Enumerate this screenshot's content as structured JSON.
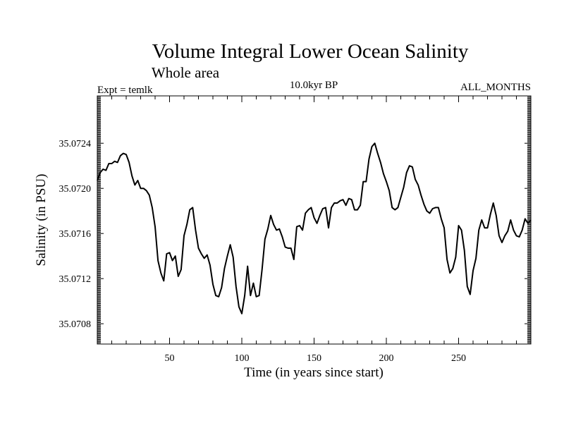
{
  "chart_data": {
    "type": "line",
    "title": "Volume Integral Lower Ocean Salinity",
    "subtitle": "Whole area",
    "left_label": "Expt = temlk",
    "center_label": "10.0kyr BP",
    "right_label": "ALL_MONTHS",
    "xlabel": "Time (in years since start)",
    "ylabel": "Salinity (in PSU)",
    "xlim": [
      0,
      300
    ],
    "ylim": [
      35.07062,
      35.07282
    ],
    "xticks": [
      50,
      100,
      150,
      200,
      250
    ],
    "xtick_labels": [
      "50",
      "100",
      "150",
      "200",
      "250"
    ],
    "yticks": [
      35.0708,
      35.0712,
      35.0716,
      35.072,
      35.0724
    ],
    "ytick_labels": [
      "35.0708",
      "35.0712",
      "35.0716",
      "35.0720",
      "35.0724"
    ],
    "line_color": "#000000",
    "series": [
      {
        "name": "Salinity",
        "x": [
          0,
          2,
          4,
          6,
          8,
          10,
          12,
          14,
          16,
          18,
          20,
          22,
          24,
          26,
          28,
          30,
          32,
          34,
          36,
          38,
          40,
          42,
          44,
          46,
          48,
          50,
          52,
          54,
          56,
          58,
          60,
          62,
          64,
          66,
          68,
          70,
          72,
          74,
          76,
          78,
          80,
          82,
          84,
          86,
          88,
          90,
          92,
          94,
          96,
          98,
          100,
          102,
          104,
          106,
          108,
          110,
          112,
          114,
          116,
          118,
          120,
          122,
          124,
          126,
          128,
          130,
          132,
          134,
          136,
          138,
          140,
          142,
          144,
          146,
          148,
          150,
          152,
          154,
          156,
          158,
          160,
          162,
          164,
          166,
          168,
          170,
          172,
          174,
          176,
          178,
          180,
          182,
          184,
          186,
          188,
          190,
          192,
          194,
          196,
          198,
          200,
          202,
          204,
          206,
          208,
          210,
          212,
          214,
          216,
          218,
          220,
          222,
          224,
          226,
          228,
          230,
          232,
          234,
          236,
          238,
          240,
          242,
          244,
          246,
          248,
          250,
          252,
          254,
          256,
          258,
          260,
          262,
          264,
          266,
          268,
          270,
          272,
          274,
          276,
          278,
          280,
          282,
          284,
          286,
          288,
          290,
          292,
          294,
          296,
          298,
          300
        ],
        "values": [
          35.07207,
          35.07214,
          35.07217,
          35.07216,
          35.07222,
          35.07222,
          35.07224,
          35.07223,
          35.07229,
          35.07231,
          35.0723,
          35.07223,
          35.07211,
          35.07203,
          35.07207,
          35.072,
          35.072,
          35.07198,
          35.07194,
          35.07183,
          35.07166,
          35.07136,
          35.07125,
          35.07118,
          35.07142,
          35.07143,
          35.07136,
          35.0714,
          35.07122,
          35.07128,
          35.07158,
          35.07168,
          35.07181,
          35.07183,
          35.07163,
          35.07147,
          35.07142,
          35.07138,
          35.07141,
          35.07132,
          35.07115,
          35.07105,
          35.07104,
          35.07112,
          35.07129,
          35.0714,
          35.0715,
          35.07139,
          35.07113,
          35.07095,
          35.07089,
          35.07105,
          35.07131,
          35.07105,
          35.07116,
          35.07104,
          35.07105,
          35.07128,
          35.07155,
          35.07164,
          35.07176,
          35.07168,
          35.07163,
          35.07164,
          35.07157,
          35.07148,
          35.07147,
          35.07147,
          35.07137,
          35.07166,
          35.07167,
          35.07163,
          35.07178,
          35.07181,
          35.07183,
          35.07174,
          35.07169,
          35.07176,
          35.07182,
          35.07183,
          35.07165,
          35.07183,
          35.07187,
          35.07187,
          35.07189,
          35.0719,
          35.07185,
          35.07191,
          35.0719,
          35.07181,
          35.07181,
          35.07185,
          35.07206,
          35.07206,
          35.07226,
          35.07237,
          35.0724,
          35.07231,
          35.07223,
          35.07213,
          35.07206,
          35.07198,
          35.07183,
          35.07181,
          35.07183,
          35.07192,
          35.07201,
          35.07214,
          35.0722,
          35.07219,
          35.07208,
          35.07203,
          35.07194,
          35.07186,
          35.0718,
          35.07178,
          35.07182,
          35.07183,
          35.07183,
          35.07173,
          35.07165,
          35.07137,
          35.07125,
          35.07129,
          35.07139,
          35.07167,
          35.07163,
          35.07145,
          35.07113,
          35.07106,
          35.07127,
          35.07138,
          35.07163,
          35.07172,
          35.07165,
          35.07165,
          35.07177,
          35.07187,
          35.07176,
          35.07158,
          35.07152,
          35.07158,
          35.07162,
          35.07172,
          35.07163,
          35.07158,
          35.07157,
          35.07163,
          35.07173,
          35.07169,
          35.07172
        ]
      }
    ]
  }
}
